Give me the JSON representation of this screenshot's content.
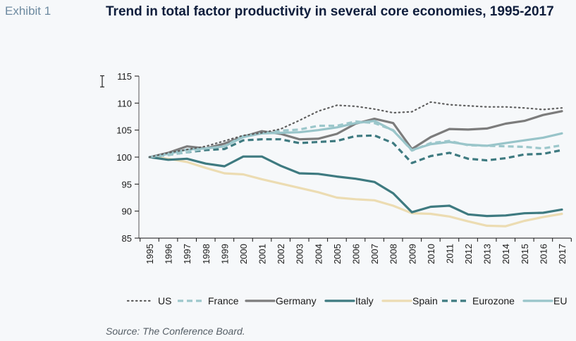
{
  "exhibit_label": "Exhibit 1",
  "title": "Trend in total factor productivity in several core economies, 1995-2017",
  "source": "Source: The Conference Board.",
  "chart_data": {
    "type": "line",
    "title": "Trend in total factor productivity in several core economies, 1995-2017",
    "xlabel": "",
    "ylabel": "",
    "ylim": [
      85,
      115
    ],
    "yticks": [
      85,
      90,
      95,
      100,
      105,
      110,
      115
    ],
    "grid": false,
    "legend": "bottom",
    "x": [
      "1995",
      "1996",
      "1997",
      "1998",
      "1999",
      "2000",
      "2001",
      "2002",
      "2003",
      "2004",
      "2005",
      "2006",
      "2007",
      "2008",
      "2009",
      "2010",
      "2011",
      "2012",
      "2013",
      "2014",
      "2015",
      "2016",
      "2017"
    ],
    "series": [
      {
        "name": "US",
        "style": "dotted",
        "color": "#5f5f5f",
        "values": [
          100.0,
          100.8,
          101.4,
          102.0,
          103.0,
          104.0,
          104.5,
          105.2,
          106.8,
          108.5,
          109.6,
          109.4,
          108.9,
          108.2,
          108.4,
          110.2,
          109.7,
          109.5,
          109.3,
          109.3,
          109.1,
          108.8,
          109.1
        ]
      },
      {
        "name": "France",
        "style": "dashed",
        "color": "#9cc7cb",
        "values": [
          100.0,
          100.4,
          100.9,
          101.6,
          102.0,
          103.9,
          104.4,
          104.9,
          105.1,
          105.8,
          105.8,
          106.6,
          106.3,
          105.0,
          101.2,
          102.6,
          103.0,
          102.2,
          102.1,
          102.0,
          101.9,
          101.6,
          102.2
        ]
      },
      {
        "name": "Germany",
        "style": "solid",
        "color": "#7c7c7c",
        "values": [
          100.0,
          100.8,
          102.0,
          101.6,
          102.5,
          103.8,
          104.8,
          104.3,
          103.3,
          103.4,
          104.3,
          106.2,
          107.1,
          106.3,
          101.5,
          103.7,
          105.2,
          105.1,
          105.3,
          106.2,
          106.7,
          107.8,
          108.5
        ]
      },
      {
        "name": "Italy",
        "style": "solid",
        "color": "#3e7a80",
        "values": [
          100.0,
          99.5,
          99.7,
          98.8,
          98.3,
          100.1,
          100.1,
          98.4,
          97.0,
          96.9,
          96.4,
          96.0,
          95.4,
          93.3,
          89.8,
          90.8,
          91.0,
          89.4,
          89.1,
          89.2,
          89.6,
          89.7,
          90.3
        ]
      },
      {
        "name": "Spain",
        "style": "solid",
        "color": "#ecdcb2",
        "values": [
          100.0,
          99.7,
          99.1,
          98.0,
          97.0,
          96.8,
          95.9,
          95.1,
          94.3,
          93.5,
          92.5,
          92.2,
          92.0,
          91.0,
          89.6,
          89.5,
          89.0,
          88.1,
          87.3,
          87.2,
          88.2,
          88.9,
          89.5
        ]
      },
      {
        "name": "Eurozone",
        "style": "dashed",
        "color": "#3e7a80",
        "values": [
          100.0,
          100.4,
          100.9,
          101.3,
          101.5,
          103.1,
          103.3,
          103.3,
          102.6,
          102.8,
          103.0,
          103.9,
          104.0,
          102.6,
          98.9,
          100.2,
          100.8,
          99.7,
          99.4,
          99.8,
          100.5,
          100.6,
          101.3
        ]
      },
      {
        "name": "EU",
        "style": "solid",
        "color": "#98c4c9",
        "values": [
          100.0,
          100.6,
          101.4,
          101.6,
          102.0,
          103.7,
          104.4,
          104.5,
          104.6,
          105.0,
          105.5,
          106.3,
          106.7,
          104.9,
          101.3,
          102.4,
          102.8,
          102.3,
          102.1,
          102.6,
          103.1,
          103.6,
          104.4
        ]
      }
    ]
  }
}
